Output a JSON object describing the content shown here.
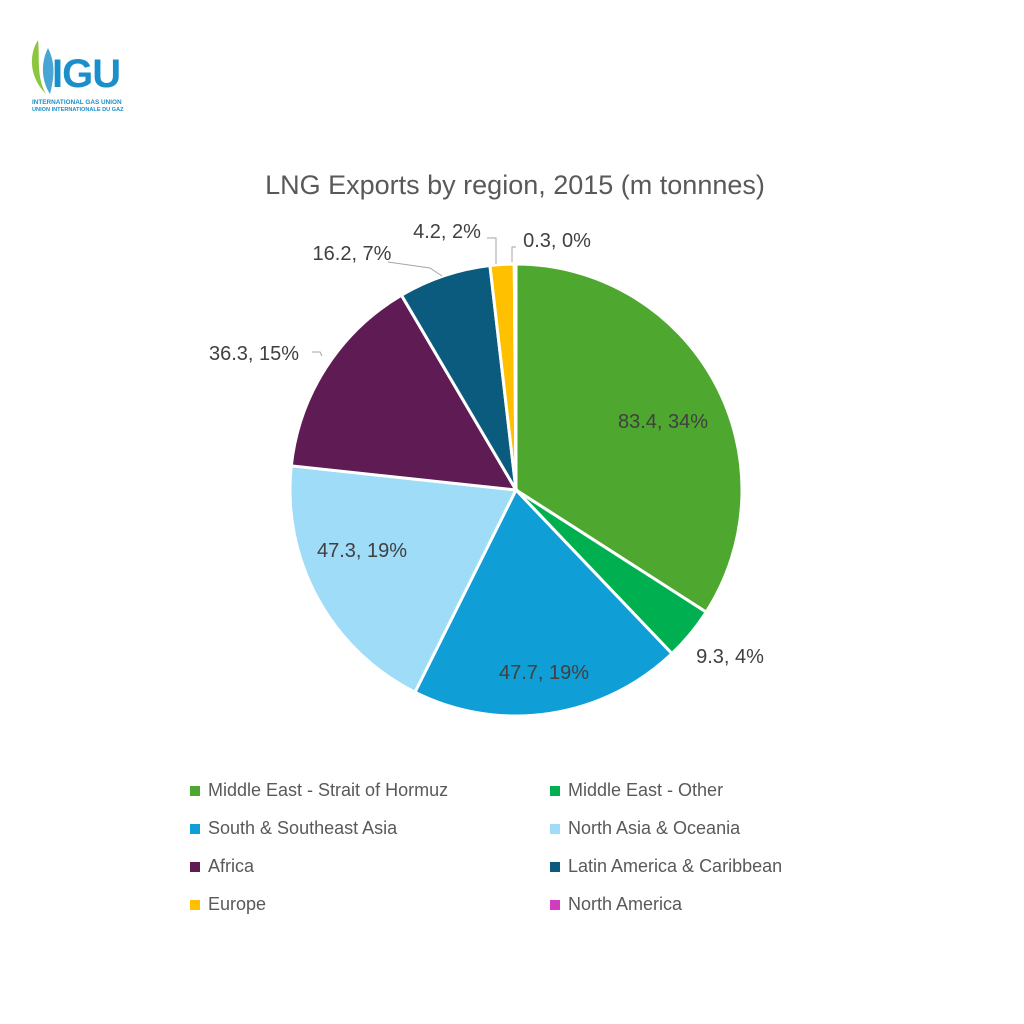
{
  "logo": {
    "name": "IGU",
    "line1": "INTERNATIONAL GAS UNION",
    "line2": "UNION INTERNATIONALE DU GAZ"
  },
  "chart_data": {
    "type": "pie",
    "title": "LNG Exports by region, 2015 (m tonnnes)",
    "categories": [
      "Middle East - Strait of Hormuz",
      "Middle East - Other",
      "South & Southeast Asia",
      "North Asia & Oceania",
      "Africa",
      "Latin America & Caribbean",
      "Europe",
      "North America"
    ],
    "values": [
      83.4,
      9.3,
      47.7,
      47.3,
      36.3,
      16.2,
      4.2,
      0.3
    ],
    "data_labels": [
      "83.4, 34%",
      "9.3, 4%",
      "47.7, 19%",
      "47.3, 19%",
      "36.3, 15%",
      "16.2, 7%",
      "4.2, 2%",
      "0.3, 0%"
    ],
    "colors": [
      "#4ea72e",
      "#00b050",
      "#0f9ed5",
      "#9fdcf7",
      "#5f1b53",
      "#0b5b7f",
      "#ffc000",
      "#d13dbe"
    ],
    "legend_position": "bottom"
  }
}
